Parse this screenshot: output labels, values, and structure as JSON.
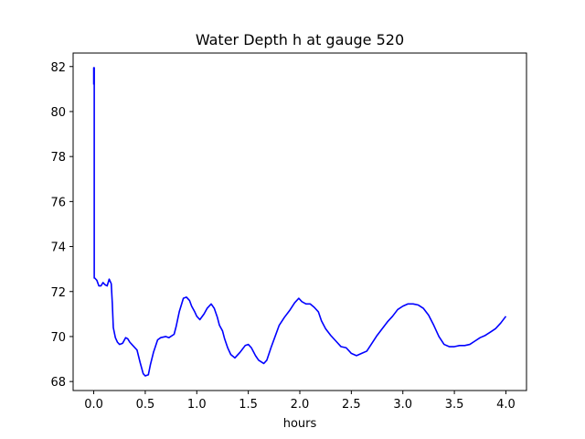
{
  "chart_data": {
    "type": "line",
    "title": "Water Depth h at gauge 520",
    "xlabel": "hours",
    "ylabel": "",
    "xlim": [
      -0.2,
      4.2
    ],
    "ylim": [
      67.6,
      82.6
    ],
    "xticks": [
      0.0,
      0.5,
      1.0,
      1.5,
      2.0,
      2.5,
      3.0,
      3.5,
      4.0
    ],
    "xtick_labels": [
      "0.0",
      "0.5",
      "1.0",
      "1.5",
      "2.0",
      "2.5",
      "3.0",
      "3.5",
      "4.0"
    ],
    "yticks": [
      68,
      70,
      72,
      74,
      76,
      78,
      80,
      82
    ],
    "ytick_labels": [
      "68",
      "70",
      "72",
      "74",
      "76",
      "78",
      "80",
      "82"
    ],
    "grid": false,
    "series": [
      {
        "color": "#0000ff",
        "x": [
          0.0,
          0.0,
          0.005,
          0.005,
          0.01,
          0.02,
          0.03,
          0.05,
          0.07,
          0.09,
          0.11,
          0.13,
          0.15,
          0.17,
          0.18,
          0.19,
          0.21,
          0.23,
          0.25,
          0.28,
          0.31,
          0.33,
          0.35,
          0.38,
          0.42,
          0.45,
          0.48,
          0.5,
          0.53,
          0.55,
          0.58,
          0.62,
          0.65,
          0.7,
          0.73,
          0.78,
          0.8,
          0.83,
          0.87,
          0.9,
          0.93,
          0.95,
          0.98,
          1.0,
          1.03,
          1.07,
          1.1,
          1.14,
          1.17,
          1.2,
          1.22,
          1.25,
          1.27,
          1.3,
          1.33,
          1.37,
          1.42,
          1.47,
          1.5,
          1.53,
          1.57,
          1.6,
          1.65,
          1.68,
          1.72,
          1.76,
          1.8,
          1.85,
          1.9,
          1.95,
          1.99,
          2.02,
          2.06,
          2.1,
          2.14,
          2.18,
          2.21,
          2.25,
          2.3,
          2.35,
          2.4,
          2.45,
          2.5,
          2.55,
          2.6,
          2.65,
          2.7,
          2.75,
          2.8,
          2.85,
          2.9,
          2.95,
          3.0,
          3.05,
          3.1,
          3.15,
          3.2,
          3.25,
          3.3,
          3.35,
          3.4,
          3.45,
          3.5,
          3.55,
          3.6,
          3.65,
          3.7,
          3.75,
          3.8,
          3.85,
          3.9,
          3.95,
          4.0
        ],
        "y": [
          81.2,
          81.95,
          81.95,
          72.6,
          72.6,
          72.55,
          72.5,
          72.25,
          72.25,
          72.4,
          72.3,
          72.25,
          72.55,
          72.35,
          71.5,
          70.4,
          69.95,
          69.75,
          69.65,
          69.7,
          69.95,
          69.9,
          69.75,
          69.6,
          69.4,
          68.85,
          68.35,
          68.25,
          68.3,
          68.75,
          69.3,
          69.85,
          69.95,
          70.0,
          69.95,
          70.1,
          70.45,
          71.1,
          71.7,
          71.75,
          71.6,
          71.35,
          71.1,
          70.9,
          70.75,
          71.0,
          71.25,
          71.45,
          71.25,
          70.85,
          70.5,
          70.25,
          69.9,
          69.5,
          69.2,
          69.05,
          69.3,
          69.6,
          69.65,
          69.5,
          69.15,
          68.95,
          68.8,
          68.95,
          69.5,
          70.0,
          70.5,
          70.85,
          71.15,
          71.5,
          71.7,
          71.55,
          71.45,
          71.45,
          71.3,
          71.1,
          70.7,
          70.35,
          70.05,
          69.8,
          69.55,
          69.5,
          69.25,
          69.15,
          69.25,
          69.35,
          69.7,
          70.05,
          70.35,
          70.65,
          70.9,
          71.2,
          71.35,
          71.45,
          71.45,
          71.4,
          71.25,
          70.95,
          70.5,
          70.0,
          69.65,
          69.55,
          69.55,
          69.6,
          69.6,
          69.65,
          69.8,
          69.95,
          70.05,
          70.2,
          70.35,
          70.6,
          70.9
        ]
      }
    ]
  }
}
